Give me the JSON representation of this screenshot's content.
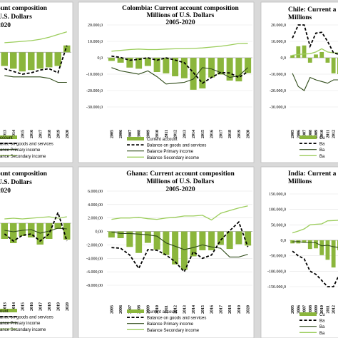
{
  "colors": {
    "bar": "#8bb63c",
    "goods": "#000000",
    "primary": "#2e4a18",
    "secondary": "#9ccd5c"
  },
  "legend_labels": [
    "Current account",
    "Balance on goods and services",
    "Balance Primary income",
    "Balance Secondary income"
  ],
  "years": [
    "2005",
    "2006",
    "2007",
    "2008",
    "2009",
    "2010",
    "2011",
    "2012",
    "2013",
    "2014",
    "2015",
    "2016",
    "2017",
    "2018",
    "2019",
    "2020"
  ],
  "chart_data": [
    {
      "id": "p1",
      "type": "bar",
      "title_lines": [
        "ount composition",
        "U.S. Dollars",
        "2020"
      ],
      "years_visible": [
        "2013",
        "2014",
        "2015",
        "2016",
        "2017",
        "2018",
        "2019",
        "2020"
      ],
      "ytick_labels": [],
      "ylim": [
        -40000,
        20000
      ],
      "yticks": [],
      "bars": [
        -10000,
        -12000,
        -14000,
        -13000,
        -12000,
        -11000,
        -10000,
        5000
      ],
      "goods": [
        -12000,
        -14000,
        -16000,
        -15000,
        -13000,
        -12000,
        -15000,
        5000
      ],
      "primary": [
        -17000,
        -18000,
        -18000,
        -18000,
        -18000,
        -19000,
        -22000,
        -22000
      ],
      "secondary": [
        7000,
        7500,
        8000,
        8500,
        9500,
        11000,
        13000,
        15000
      ],
      "legend_labels": [
        "ccount",
        "ance on goods and services",
        "ance Primary income",
        "ance Secondary income"
      ]
    },
    {
      "id": "p2",
      "type": "bar",
      "title_lines": [
        "Colombia: Current account composition",
        "Millions of U.S. Dollars",
        "2005-2020"
      ],
      "years_visible": [
        "2005",
        "2006",
        "2007",
        "2008",
        "2009",
        "2010",
        "2011",
        "2012",
        "2013",
        "2014",
        "2015",
        "2016",
        "2017",
        "2018",
        "2019",
        "2020"
      ],
      "ytick_labels": [
        "20.000,0",
        "10.000,0",
        "0,0",
        "-10.000,0",
        "-20.000,0",
        "-30.000,0"
      ],
      "yticks": [
        20000,
        10000,
        0,
        -10000,
        -20000,
        -30000
      ],
      "ylim": [
        -30000,
        20000
      ],
      "bars": [
        -1900,
        -3000,
        -6000,
        -6700,
        -5000,
        -8700,
        -9500,
        -11300,
        -12500,
        -19500,
        -18700,
        -12000,
        -10200,
        -13900,
        -14400,
        -9300
      ],
      "goods": [
        1000,
        200,
        -1500,
        -1000,
        0,
        -1500,
        -100,
        -1400,
        -3000,
        -9000,
        -15500,
        -12000,
        -9000,
        -9300,
        -12000,
        -8500
      ],
      "primary": [
        -6000,
        -8000,
        -9000,
        -10000,
        -8000,
        -11500,
        -16000,
        -15500,
        -15000,
        -13000,
        -6000,
        -6800,
        -9000,
        -12000,
        -11000,
        -6000
      ],
      "secondary": [
        4000,
        4500,
        5000,
        5300,
        5000,
        5000,
        5300,
        5500,
        5500,
        5700,
        6000,
        6500,
        7000,
        7800,
        8700,
        8800
      ]
    },
    {
      "id": "p3",
      "type": "bar",
      "title_lines": [
        "Chile: Current a",
        "Millions"
      ],
      "years_visible": [
        "2005",
        "2006",
        "2007",
        "2008",
        "2009",
        "2010",
        "2011",
        "2012",
        "2013"
      ],
      "ytick_labels": [
        "20.000,0",
        "10.000,0",
        "0,0",
        "-10.000,0",
        "-20.000,0",
        "-30.000,0"
      ],
      "yticks": [
        20000,
        10000,
        0,
        -10000,
        -20000,
        -30000
      ],
      "ylim": [
        -30000,
        20000
      ],
      "bars": [
        1500,
        7000,
        7500,
        -3000,
        2000,
        3500,
        -3000,
        -9500,
        -10000
      ],
      "goods": [
        12000,
        22000,
        24000,
        7000,
        15000,
        15500,
        10000,
        3000,
        2000
      ],
      "primary": [
        -9500,
        -17500,
        -20000,
        -12000,
        -13500,
        -14500,
        -15500,
        -13500,
        -13500
      ],
      "secondary": [
        1500,
        2000,
        2300,
        2500,
        3500,
        5500,
        3500,
        3000,
        3000
      ],
      "legend_labels": [
        "Cu",
        "Ba",
        "Ba",
        "Ba"
      ]
    },
    {
      "id": "p4",
      "type": "bar",
      "title_lines": [
        "ount composition",
        "U.S. Dollars",
        "2020"
      ],
      "years_visible": [
        "2013",
        "2014",
        "2015",
        "2016",
        "2017",
        "2018",
        "2019",
        "2020"
      ],
      "ytick_labels": [],
      "ylim": [
        -8000,
        4000
      ],
      "yticks": [],
      "bars": [
        -2200,
        -2800,
        -1800,
        -2000,
        -3000,
        -2200,
        -800,
        -2300
      ],
      "goods": [
        -1500,
        -2500,
        -1700,
        -1500,
        -2500,
        -1500,
        1500,
        -2500
      ],
      "primary": [
        -1000,
        -1200,
        -1000,
        -900,
        -1400,
        -1100,
        -700,
        -800
      ],
      "secondary": [
        600,
        700,
        600,
        700,
        800,
        900,
        700,
        900
      ],
      "legend_labels": [
        "ount",
        "ance on goods and services",
        "ance Primary income",
        "ance Secondary income"
      ]
    },
    {
      "id": "p5",
      "type": "bar",
      "title_lines": [
        "Ghana: Current account composition",
        "Millions of U.S. Dollars",
        "2005-2020"
      ],
      "years_visible": [
        "2005",
        "2006",
        "2007",
        "2008",
        "2009",
        "2010",
        "2011",
        "2012",
        "2013",
        "2014",
        "2015",
        "2016",
        "2017",
        "2018",
        "2019",
        "2020"
      ],
      "ytick_labels": [
        "6.000,00",
        "4.000,00",
        "2.000,00",
        "0,00",
        "-2.000,00",
        "-4.000,00",
        "-6.000,00",
        "-8.000,00"
      ],
      "yticks": [
        6000,
        4000,
        2000,
        0,
        -2000,
        -4000,
        -6000,
        -8000
      ],
      "ylim": [
        -8000,
        6000
      ],
      "bars": [
        -900,
        -1000,
        -2300,
        -3200,
        -1700,
        -2700,
        -3500,
        -4900,
        -5700,
        -3700,
        -2800,
        -2800,
        -2000,
        -2600,
        -1900,
        -2100
      ],
      "goods": [
        -2400,
        -2500,
        -3500,
        -5500,
        -2700,
        -2800,
        -3500,
        -4500,
        -6000,
        -3000,
        -4000,
        -3500,
        -1300,
        100,
        1400,
        -2300
      ],
      "primary": [
        -100,
        -300,
        -300,
        -400,
        -500,
        -700,
        -1700,
        -2200,
        -2700,
        -2400,
        -2000,
        -2300,
        -2500,
        -3800,
        -3800,
        -3400
      ],
      "secondary": [
        1800,
        2000,
        2000,
        2100,
        1900,
        1800,
        2000,
        2100,
        2300,
        2300,
        2400,
        1700,
        2700,
        3100,
        3500,
        3800
      ]
    },
    {
      "id": "p6",
      "type": "bar",
      "title_lines": [
        "India: Current a",
        "Millions"
      ],
      "years_visible": [
        "2005",
        "2006",
        "2007",
        "2008",
        "2009",
        "2010",
        "2011",
        "2012",
        "2013"
      ],
      "ytick_labels": [
        "150.000,0",
        "100.000,0",
        "50.000,0",
        "0,0",
        "-50.000,0",
        "-100.000,0",
        "-150.000,0"
      ],
      "yticks": [
        150000,
        100000,
        50000,
        0,
        -50000,
        -100000,
        -150000
      ],
      "ylim": [
        -150000,
        150000
      ],
      "bars": [
        -10000,
        -10000,
        -8000,
        -28000,
        -26000,
        -48000,
        -63000,
        -88000,
        -32000
      ],
      "goods": [
        -35000,
        -50000,
        -60000,
        -100000,
        -110000,
        -130000,
        -150000,
        -150000,
        -110000
      ],
      "primary": [
        -5000,
        -4000,
        -7000,
        -7000,
        -8000,
        -18000,
        -16000,
        -21000,
        -23000
      ],
      "secondary": [
        24000,
        30000,
        37000,
        50000,
        52000,
        53000,
        63000,
        64000,
        65000
      ],
      "legend_labels": [
        "Cu",
        "Ba",
        "Ba",
        "Ba"
      ]
    }
  ]
}
